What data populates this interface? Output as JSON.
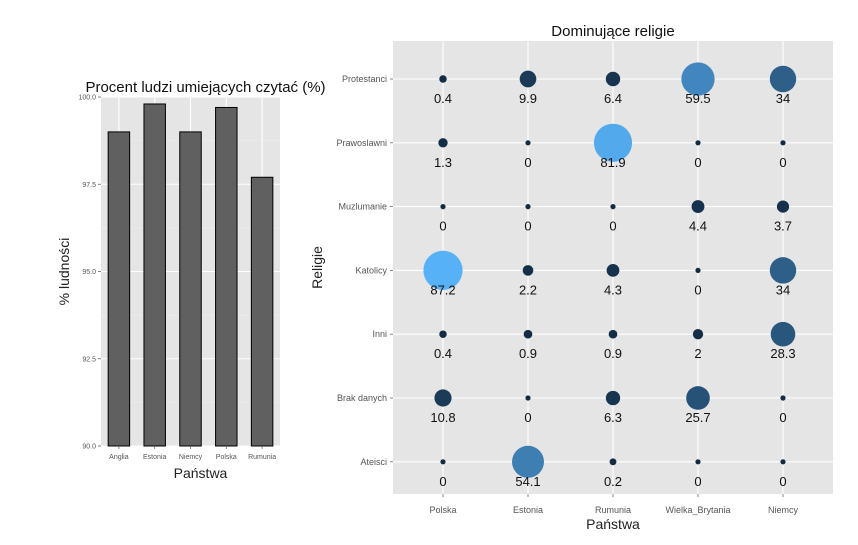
{
  "chart_data": [
    {
      "type": "bar",
      "title": "Procent ludzi umiejących czytać (%)",
      "xlabel": "Państwa",
      "ylabel": "% ludności",
      "categories": [
        "Anglia",
        "Estonia",
        "Niemcy",
        "Polska",
        "Rumunia"
      ],
      "values": [
        99.0,
        99.8,
        99.0,
        99.7,
        97.7
      ],
      "ylim": [
        90.0,
        100.0
      ],
      "yticks": [
        "90.0",
        "92.5",
        "95.0",
        "97.5",
        "100.0"
      ],
      "bar_color": "#606060",
      "grid": true
    },
    {
      "type": "scatter",
      "title": "Dominujące religie",
      "xlabel": "Państwa",
      "ylabel": "Religie",
      "x_categories": [
        "Polska",
        "Estonia",
        "Rumunia",
        "Wielka_Brytania",
        "Niemcy"
      ],
      "y_categories": [
        "Ateisci",
        "Brak danych",
        "Inni",
        "Katolicy",
        "Muzlumanie",
        "Prawoslawni",
        "Protestanci"
      ],
      "values": {
        "Protestanci": [
          0.4,
          9.9,
          6.4,
          59.5,
          34
        ],
        "Prawoslawni": [
          1.3,
          0,
          81.9,
          0,
          0
        ],
        "Muzlumanie": [
          0,
          0,
          0,
          4.4,
          3.7
        ],
        "Katolicy": [
          87.2,
          2.2,
          4.3,
          0,
          34
        ],
        "Inni": [
          0.4,
          0.9,
          0.9,
          2,
          28.3
        ],
        "Brak danych": [
          10.8,
          0,
          6.3,
          25.7,
          0
        ],
        "Ateisci": [
          0,
          54.1,
          0.2,
          0,
          0
        ]
      },
      "color_low": "#132b43",
      "color_high": "#56b1f7",
      "grid": true
    }
  ]
}
